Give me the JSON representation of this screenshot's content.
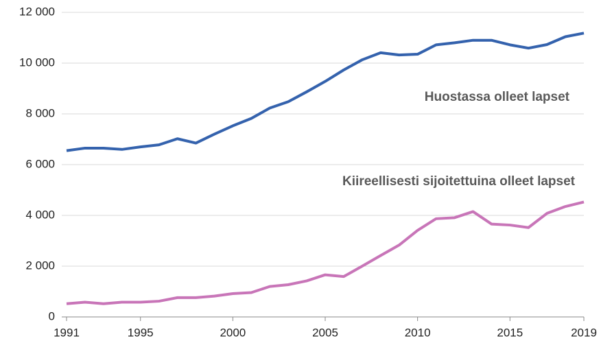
{
  "chart_data": {
    "type": "line",
    "x": [
      1991,
      1992,
      1993,
      1994,
      1995,
      1996,
      1997,
      1998,
      1999,
      2000,
      2001,
      2002,
      2003,
      2004,
      2005,
      2006,
      2007,
      2008,
      2009,
      2010,
      2011,
      2012,
      2013,
      2014,
      2015,
      2016,
      2017,
      2018,
      2019
    ],
    "series": [
      {
        "name": "Huostassa olleet lapset",
        "color": "#3462ad",
        "values": [
          6550,
          6650,
          6650,
          6600,
          6700,
          6780,
          7020,
          6850,
          7200,
          7530,
          7820,
          8230,
          8480,
          8870,
          9280,
          9730,
          10130,
          10410,
          10320,
          10350,
          10720,
          10800,
          10900,
          10900,
          10720,
          10590,
          10730,
          11040,
          11180
        ]
      },
      {
        "name": "Kiireellisesti sijoitettuina olleet lapset",
        "color": "#c875b8",
        "values": [
          520,
          580,
          520,
          580,
          580,
          620,
          760,
          760,
          820,
          920,
          960,
          1200,
          1270,
          1420,
          1660,
          1590,
          2000,
          2420,
          2830,
          3410,
          3870,
          3910,
          4150,
          3660,
          3620,
          3520,
          4080,
          4350,
          4530
        ]
      }
    ],
    "xlim": [
      1991,
      2019
    ],
    "xticks": [
      1991,
      1995,
      2000,
      2005,
      2010,
      2015,
      2019
    ],
    "ylim": [
      0,
      12000
    ],
    "yticks": [
      0,
      {
        "value": 2000,
        "label": "2 000"
      },
      {
        "value": 4000,
        "label": "4 000"
      },
      {
        "value": 6000,
        "label": "6 000"
      },
      {
        "value": 8000,
        "label": "8 000"
      },
      {
        "value": 10000,
        "label": "10 000"
      },
      {
        "value": 12000,
        "label": "12 000"
      }
    ],
    "grid": true
  }
}
